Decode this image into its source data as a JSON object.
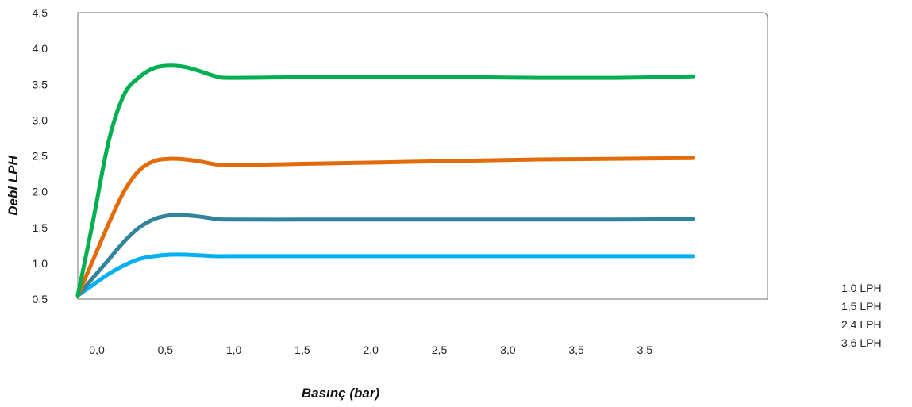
{
  "chart_data": {
    "type": "line",
    "title": "",
    "xlabel": "Basınç (bar)",
    "ylabel": "Debi LPH",
    "x_tick_labels": [
      "0,0",
      "0,5",
      "1,0",
      "1,5",
      "2,0",
      "2,5",
      "3,0",
      "3,5",
      "3,5"
    ],
    "y_tick_labels": [
      "0.5",
      "1.0",
      "1,5",
      "2,0",
      "2,5",
      "3,0",
      "3,5",
      "4,0",
      "4,5"
    ],
    "xlim": [
      0,
      4.0
    ],
    "ylim": [
      0.5,
      4.5
    ],
    "grid": false,
    "legend_position": "right",
    "series": [
      {
        "name": "1.0 LPH",
        "color": "#00b0f0",
        "x": [
          0.0,
          0.1,
          0.2,
          0.3,
          0.4,
          0.5,
          0.6,
          0.7,
          0.8,
          0.9,
          1.0,
          1.5,
          2.0,
          2.5,
          3.0,
          3.5,
          4.0
        ],
        "y": [
          0.55,
          0.7,
          0.85,
          0.97,
          1.06,
          1.1,
          1.12,
          1.12,
          1.11,
          1.1,
          1.1,
          1.1,
          1.1,
          1.1,
          1.1,
          1.1,
          1.1
        ]
      },
      {
        "name": "1,5 LPH",
        "color": "#31849b",
        "x": [
          0.0,
          0.1,
          0.2,
          0.3,
          0.4,
          0.5,
          0.6,
          0.7,
          0.8,
          0.9,
          1.0,
          1.5,
          2.0,
          2.5,
          3.0,
          3.5,
          4.0
        ],
        "y": [
          0.55,
          0.8,
          1.05,
          1.3,
          1.5,
          1.62,
          1.67,
          1.67,
          1.65,
          1.62,
          1.61,
          1.61,
          1.61,
          1.61,
          1.61,
          1.61,
          1.62
        ]
      },
      {
        "name": "2,4 LPH",
        "color": "#e36c0a",
        "x": [
          0.0,
          0.1,
          0.2,
          0.3,
          0.4,
          0.5,
          0.6,
          0.7,
          0.8,
          0.9,
          1.0,
          1.5,
          2.0,
          2.5,
          3.0,
          3.5,
          4.0
        ],
        "y": [
          0.55,
          1.05,
          1.55,
          2.0,
          2.3,
          2.43,
          2.46,
          2.45,
          2.42,
          2.38,
          2.37,
          2.39,
          2.41,
          2.43,
          2.45,
          2.46,
          2.47
        ]
      },
      {
        "name": "3.6 LPH",
        "color": "#00b050",
        "x": [
          0.0,
          0.1,
          0.2,
          0.3,
          0.4,
          0.5,
          0.6,
          0.7,
          0.8,
          0.9,
          1.0,
          1.5,
          2.0,
          2.5,
          3.0,
          3.5,
          4.0
        ],
        "y": [
          0.55,
          1.6,
          2.7,
          3.35,
          3.6,
          3.73,
          3.76,
          3.74,
          3.68,
          3.61,
          3.59,
          3.6,
          3.6,
          3.6,
          3.59,
          3.59,
          3.61
        ]
      }
    ]
  }
}
